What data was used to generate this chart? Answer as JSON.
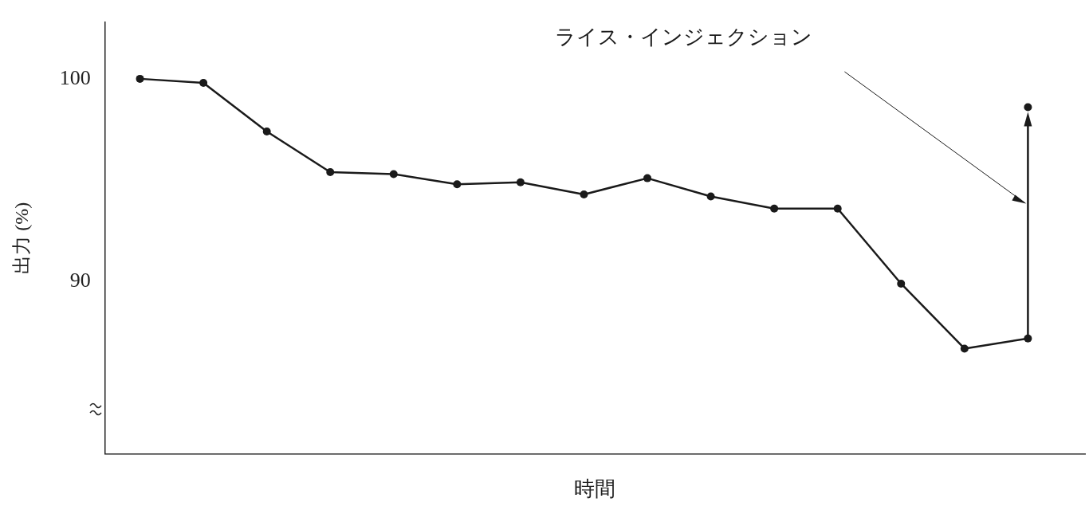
{
  "chart_data": {
    "type": "line",
    "categories": [
      null,
      null,
      null,
      null,
      null,
      null,
      null,
      null,
      null,
      null,
      null,
      null,
      null,
      null,
      null
    ],
    "series": [
      {
        "color": "#1a1a1a",
        "values": [
          100.0,
          99.8,
          97.4,
          95.4,
          95.3,
          94.8,
          94.9,
          94.3,
          95.1,
          94.2,
          93.6,
          93.6,
          89.9,
          86.7,
          87.2
        ]
      },
      {
        "type": "scatter",
        "color": "#1a1a1a",
        "values": [
          null,
          null,
          null,
          null,
          null,
          null,
          null,
          null,
          null,
          null,
          null,
          null,
          null,
          null,
          98.6
        ]
      }
    ],
    "ylabel": "出力 (%)",
    "xlabel": "時間",
    "ylim": [
      81.5,
      102.8
    ],
    "yticks": [
      90,
      100
    ],
    "tick_labels": "y",
    "grid": false,
    "legend": false,
    "marker": "circle",
    "line_style": "solid",
    "annotations": [
      "ライス・インジェクション"
    ]
  }
}
